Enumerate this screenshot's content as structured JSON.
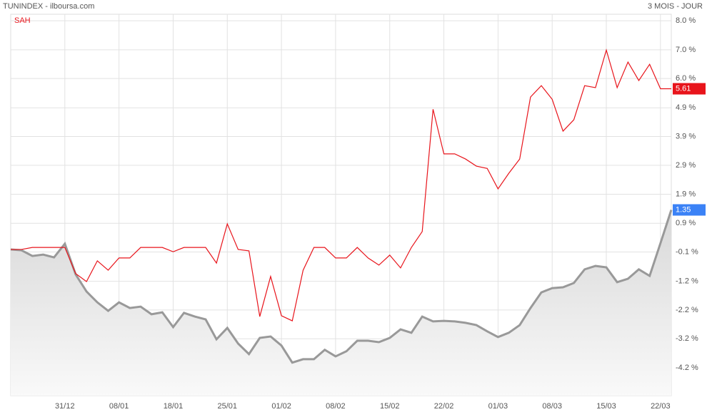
{
  "chart_data": {
    "type": "line",
    "title": "TUNINDEX - ilboursa.com",
    "subtitle": "3 MOIS - JOUR",
    "categories": [
      null,
      null,
      null,
      null,
      null,
      "31/12",
      null,
      null,
      null,
      null,
      "08/01",
      null,
      null,
      null,
      null,
      "18/01",
      null,
      null,
      null,
      null,
      "25/01",
      null,
      null,
      null,
      null,
      "01/02",
      null,
      null,
      null,
      null,
      "08/02",
      null,
      null,
      null,
      null,
      "15/02",
      null,
      null,
      null,
      null,
      "22/02",
      null,
      null,
      null,
      null,
      "01/03",
      null,
      null,
      null,
      null,
      "08/03",
      null,
      null,
      null,
      null,
      "15/03",
      null,
      null,
      null,
      null,
      "22/03",
      null
    ],
    "series": [
      {
        "color": "#999999",
        "area": true,
        "label_color": "#3b82f6",
        "values": [
          -0.04,
          -0.07,
          -0.27,
          -0.22,
          -0.32,
          0.16,
          -0.92,
          -1.52,
          -1.9,
          -2.2,
          -1.9,
          -2.1,
          -2.05,
          -2.32,
          -2.25,
          -2.77,
          -2.27,
          -2.4,
          -2.5,
          -3.2,
          -2.8,
          -3.35,
          -3.72,
          -3.15,
          -3.1,
          -3.42,
          -4.02,
          -3.9,
          -3.9,
          -3.57,
          -3.8,
          -3.62,
          -3.25,
          -3.25,
          -3.3,
          -3.15,
          -2.85,
          -2.97,
          -2.4,
          -2.57,
          -2.55,
          -2.57,
          -2.62,
          -2.7,
          -2.92,
          -3.12,
          -2.97,
          -2.7,
          -2.1,
          -1.55,
          -1.4,
          -1.37,
          -1.22,
          -0.74,
          -0.62,
          -0.67,
          -1.19,
          -1.07,
          -0.74,
          -0.97,
          0.18,
          1.35
        ]
      },
      {
        "name": "SAH",
        "color": "#e8141b",
        "label_color": "#e8141b",
        "values": [
          -0.04,
          -0.04,
          0.03,
          0.03,
          0.03,
          0.03,
          -0.89,
          -1.17,
          -0.44,
          -0.77,
          -0.34,
          -0.34,
          0.03,
          0.03,
          0.03,
          -0.12,
          0.03,
          0.03,
          0.03,
          -0.52,
          0.86,
          -0.04,
          -0.09,
          -2.4,
          -0.99,
          -2.37,
          -2.55,
          -0.77,
          0.03,
          0.03,
          -0.34,
          -0.34,
          0.03,
          -0.34,
          -0.59,
          -0.24,
          -0.69,
          0.03,
          0.59,
          4.89,
          3.32,
          3.32,
          3.14,
          2.89,
          2.81,
          2.09,
          2.64,
          3.14,
          5.32,
          5.72,
          5.24,
          4.12,
          4.52,
          5.72,
          5.65,
          6.97,
          5.65,
          6.55,
          5.9,
          6.47,
          5.61,
          5.61
        ]
      }
    ],
    "ylim": [
      -5.18,
      8.23
    ],
    "yticks": [
      {
        "value": 8.0,
        "label": "8.0 %"
      },
      {
        "value": 6.98,
        "label": "7.0 %"
      },
      {
        "value": 5.97,
        "label": "6.0 %"
      },
      {
        "value": 4.94,
        "label": "4.9 %"
      },
      {
        "value": 3.93,
        "label": "3.9 %"
      },
      {
        "value": 2.92,
        "label": "2.9 %"
      },
      {
        "value": 1.9,
        "label": "1.9 %"
      },
      {
        "value": 0.88,
        "label": "0.9 %"
      },
      {
        "value": -0.13,
        "label": "-0.1 %"
      },
      {
        "value": -1.16,
        "label": "-1.2 %"
      },
      {
        "value": -2.17,
        "label": "-2.2 %"
      },
      {
        "value": -3.18,
        "label": "-3.2 %"
      },
      {
        "value": -4.2,
        "label": "-4.2 %"
      }
    ],
    "grid": true
  }
}
